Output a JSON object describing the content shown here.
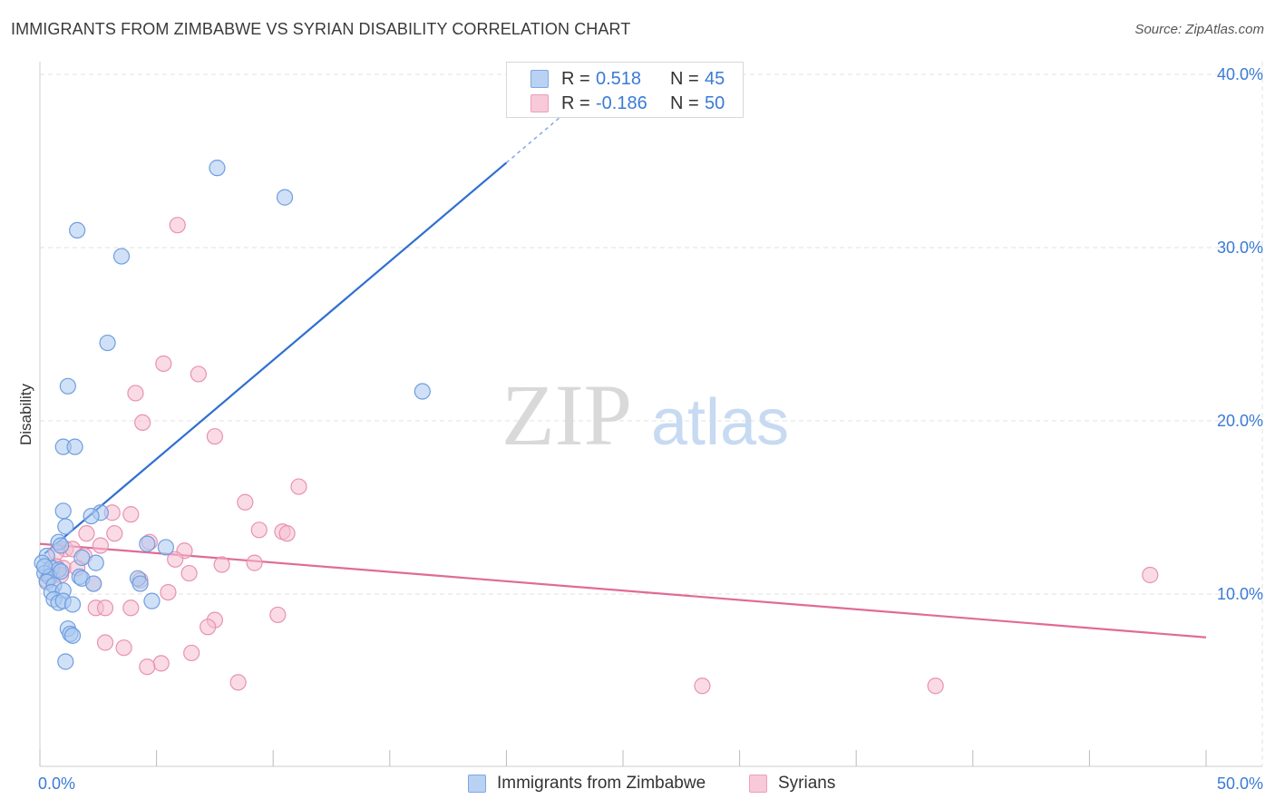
{
  "title": "IMMIGRANTS FROM ZIMBABWE VS SYRIAN DISABILITY CORRELATION CHART",
  "source": "Source: ZipAtlas.com",
  "watermark": {
    "zip": "ZIP",
    "atlas": "atlas"
  },
  "colors": {
    "blue_fill": "#a9c8f0",
    "blue_stroke": "#6f9ee0",
    "blue_line": "#2f6fd0",
    "pink_fill": "#f6bdd0",
    "pink_stroke": "#e892b0",
    "pink_line": "#e06b97",
    "grid": "#e2e2e2",
    "axis_text": "#3a7bd5"
  },
  "legend_top": [
    {
      "r_label": "R =",
      "r_value": "0.518",
      "n_label": "N =",
      "n_value": "45"
    },
    {
      "r_label": "R =",
      "r_value": "-0.186",
      "n_label": "N =",
      "n_value": "50"
    }
  ],
  "legend_bottom": [
    "Immigrants from Zimbabwe",
    "Syrians"
  ],
  "chart_data": {
    "type": "scatter",
    "title": "IMMIGRANTS FROM ZIMBABWE VS SYRIAN DISABILITY CORRELATION CHART",
    "xlabel": "",
    "ylabel": "Disability",
    "xlim": [
      0,
      50
    ],
    "ylim": [
      0,
      42
    ],
    "x_tick_labels": [
      "0.0%",
      "50.0%"
    ],
    "y_ticks": [
      10,
      20,
      30,
      40
    ],
    "y_tick_labels": [
      "10.0%",
      "20.0%",
      "30.0%",
      "40.0%"
    ],
    "grid": true,
    "legend_position": "top-center",
    "series": [
      {
        "name": "Immigrants from Zimbabwe",
        "R": 0.518,
        "N": 45,
        "trend": {
          "x_solid": [
            0.2,
            20
          ],
          "slope": 1.14,
          "intercept": 12.1,
          "x_dash_end": 23
        },
        "points": [
          [
            7.6,
            34.6
          ],
          [
            10.5,
            32.9
          ],
          [
            1.6,
            31.0
          ],
          [
            3.5,
            29.5
          ],
          [
            2.9,
            24.5
          ],
          [
            1.2,
            22.0
          ],
          [
            16.4,
            21.7
          ],
          [
            1.0,
            18.5
          ],
          [
            1.5,
            18.5
          ],
          [
            1.0,
            14.8
          ],
          [
            2.6,
            14.7
          ],
          [
            2.2,
            14.5
          ],
          [
            1.1,
            13.9
          ],
          [
            0.8,
            13.0
          ],
          [
            0.9,
            12.8
          ],
          [
            4.6,
            12.9
          ],
          [
            5.4,
            12.7
          ],
          [
            1.8,
            12.1
          ],
          [
            0.3,
            12.2
          ],
          [
            0.1,
            11.8
          ],
          [
            0.5,
            11.5
          ],
          [
            0.8,
            11.4
          ],
          [
            2.4,
            11.8
          ],
          [
            0.2,
            11.2
          ],
          [
            0.4,
            11.0
          ],
          [
            0.3,
            10.7
          ],
          [
            1.7,
            11.0
          ],
          [
            1.8,
            10.9
          ],
          [
            4.2,
            10.9
          ],
          [
            4.3,
            10.6
          ],
          [
            0.6,
            10.5
          ],
          [
            2.3,
            10.6
          ],
          [
            0.5,
            10.1
          ],
          [
            1.0,
            10.2
          ],
          [
            0.6,
            9.7
          ],
          [
            0.8,
            9.5
          ],
          [
            1.0,
            9.6
          ],
          [
            1.4,
            9.4
          ],
          [
            4.8,
            9.6
          ],
          [
            1.2,
            8.0
          ],
          [
            1.3,
            7.7
          ],
          [
            1.4,
            7.6
          ],
          [
            1.1,
            6.1
          ],
          [
            0.2,
            11.6
          ],
          [
            0.9,
            11.3
          ]
        ]
      },
      {
        "name": "Syrians",
        "R": -0.186,
        "N": 50,
        "trend": {
          "x": [
            0,
            50
          ],
          "y": [
            12.9,
            7.5
          ]
        },
        "points": [
          [
            5.9,
            31.3
          ],
          [
            5.3,
            23.3
          ],
          [
            6.8,
            22.7
          ],
          [
            4.1,
            21.6
          ],
          [
            4.4,
            19.9
          ],
          [
            7.5,
            19.1
          ],
          [
            11.1,
            16.2
          ],
          [
            8.8,
            15.3
          ],
          [
            3.1,
            14.7
          ],
          [
            3.9,
            14.6
          ],
          [
            9.4,
            13.7
          ],
          [
            10.4,
            13.6
          ],
          [
            10.6,
            13.5
          ],
          [
            2.0,
            13.5
          ],
          [
            3.2,
            13.5
          ],
          [
            4.7,
            13.0
          ],
          [
            2.6,
            12.8
          ],
          [
            1.1,
            12.6
          ],
          [
            1.4,
            12.6
          ],
          [
            6.2,
            12.5
          ],
          [
            1.9,
            12.2
          ],
          [
            0.7,
            12.4
          ],
          [
            5.8,
            12.0
          ],
          [
            7.8,
            11.7
          ],
          [
            9.2,
            11.8
          ],
          [
            0.7,
            11.6
          ],
          [
            1.0,
            11.5
          ],
          [
            1.6,
            11.5
          ],
          [
            6.4,
            11.2
          ],
          [
            0.5,
            11.0
          ],
          [
            0.3,
            10.8
          ],
          [
            4.3,
            10.8
          ],
          [
            2.3,
            10.6
          ],
          [
            47.6,
            11.1
          ],
          [
            5.5,
            10.1
          ],
          [
            2.4,
            9.2
          ],
          [
            2.8,
            9.2
          ],
          [
            3.9,
            9.2
          ],
          [
            10.2,
            8.8
          ],
          [
            7.5,
            8.5
          ],
          [
            7.2,
            8.1
          ],
          [
            2.8,
            7.2
          ],
          [
            3.6,
            6.9
          ],
          [
            6.5,
            6.6
          ],
          [
            5.2,
            6.0
          ],
          [
            4.6,
            5.8
          ],
          [
            8.5,
            4.9
          ],
          [
            28.4,
            4.7
          ],
          [
            38.4,
            4.7
          ],
          [
            0.9,
            11.1
          ]
        ]
      }
    ]
  }
}
